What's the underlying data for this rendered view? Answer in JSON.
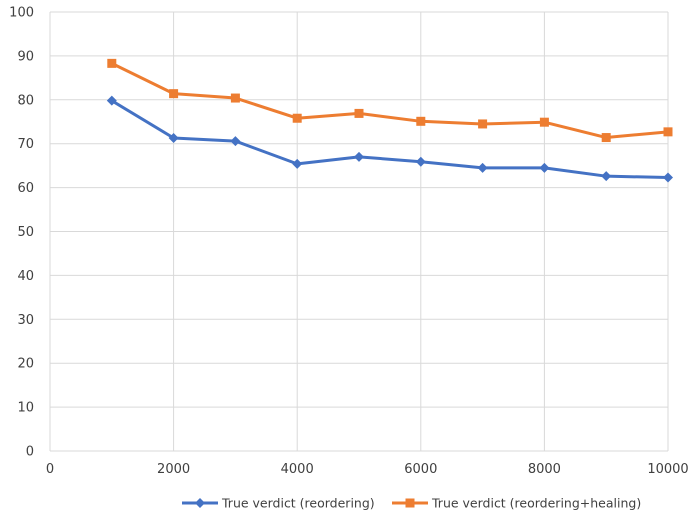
{
  "chart_data": {
    "type": "line",
    "x": [
      1000,
      2000,
      3000,
      4000,
      5000,
      6000,
      7000,
      8000,
      9000,
      10000
    ],
    "xlim": [
      0,
      10000
    ],
    "ylim": [
      0,
      100
    ],
    "xticks": [
      0,
      2000,
      4000,
      6000,
      8000,
      10000
    ],
    "yticks": [
      0,
      10,
      20,
      30,
      40,
      50,
      60,
      70,
      80,
      90,
      100
    ],
    "grid": true,
    "legend_position": "bottom",
    "series": [
      {
        "name": "True verdict (reordering)",
        "color": "#4472c4",
        "marker": "diamond",
        "values": [
          79.8,
          71.3,
          70.6,
          65.4,
          67.0,
          65.9,
          64.5,
          64.5,
          62.6,
          62.3
        ]
      },
      {
        "name": "True verdict (reordering+healing)",
        "color": "#ed7d31",
        "marker": "square",
        "values": [
          88.3,
          81.4,
          80.4,
          75.8,
          76.9,
          75.1,
          74.5,
          74.9,
          71.4,
          72.7
        ]
      }
    ]
  }
}
